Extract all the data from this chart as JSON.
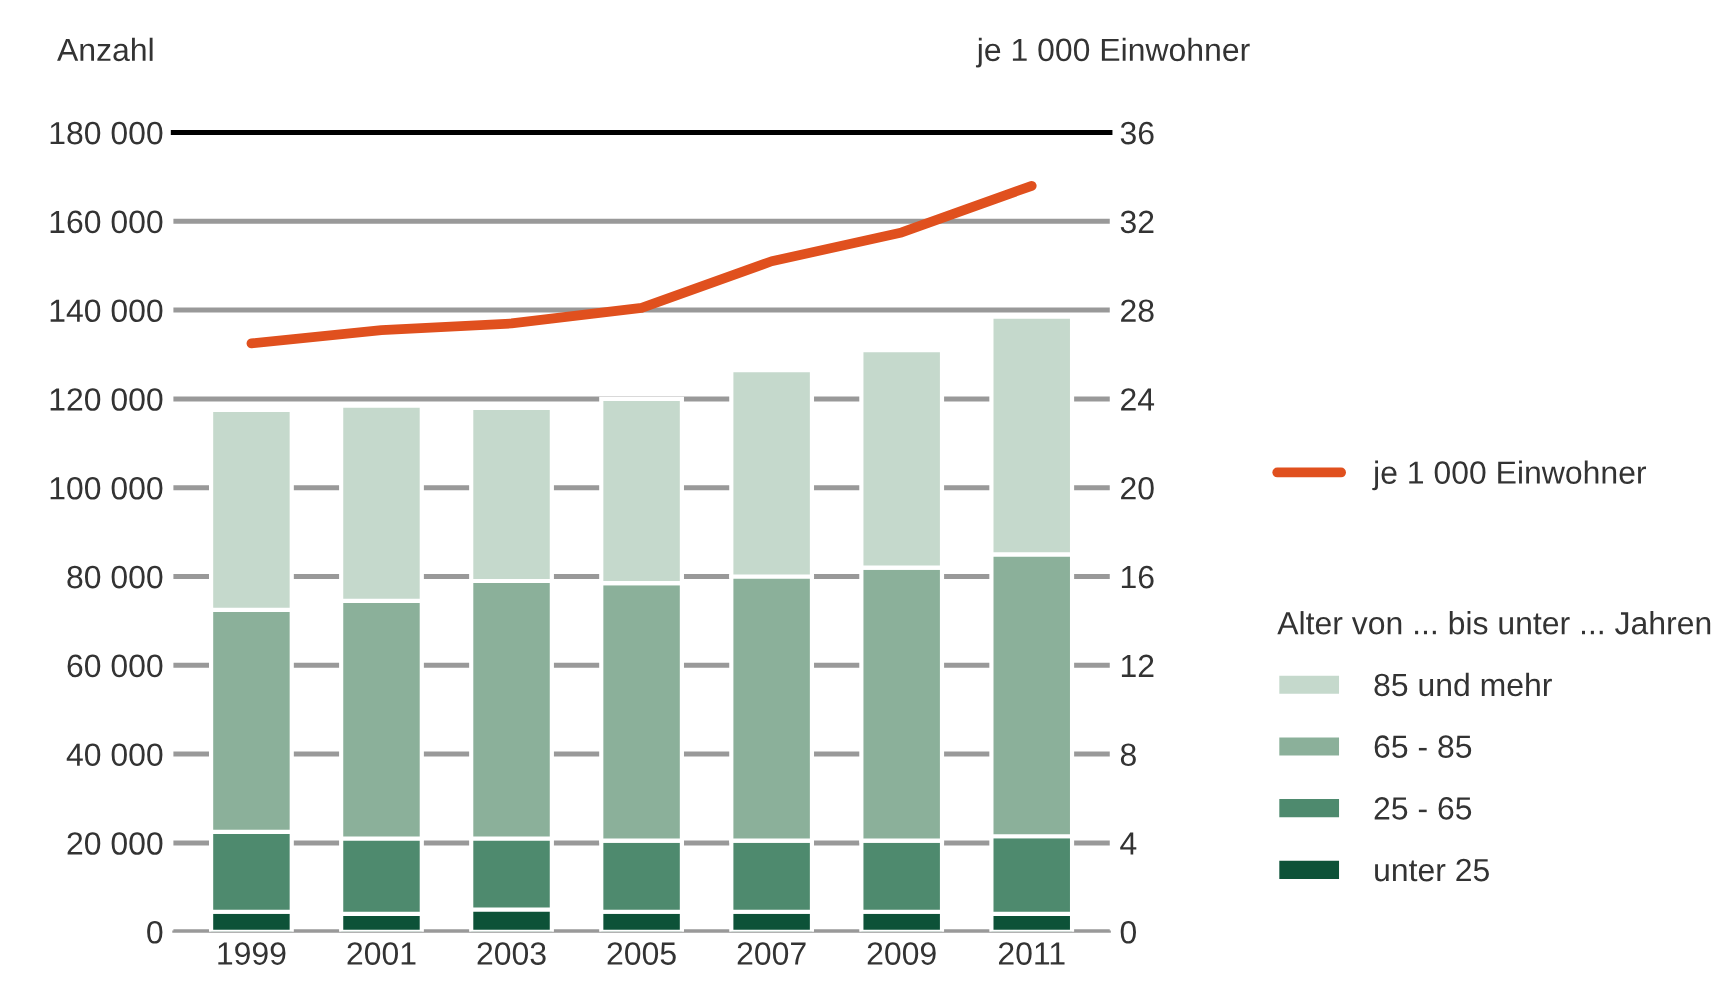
{
  "chart_data": {
    "type": "bar",
    "stacked": true,
    "ylabel": "Anzahl",
    "y2label": "je 1 000 Einwohner",
    "legend_title": "Alter von ... bis unter ... Jahren",
    "legend": "right",
    "grid": "y",
    "categories": [
      "1999",
      "2001",
      "2003",
      "2005",
      "2007",
      "2009",
      "2011"
    ],
    "series": [
      {
        "name": "unter 25",
        "color": "#0d5238",
        "values": [
          4500,
          4000,
          5000,
          4500,
          4500,
          4500,
          4000
        ]
      },
      {
        "name": "25 - 65",
        "color": "#4e8a6e",
        "values": [
          18000,
          17000,
          16000,
          16000,
          16000,
          16000,
          17500
        ]
      },
      {
        "name": "65 - 85",
        "color": "#8bb09a",
        "values": [
          50000,
          53500,
          58000,
          58000,
          59500,
          61500,
          63500
        ]
      },
      {
        "name": "85 und mehr",
        "color": "#c5d9cc",
        "values": [
          45000,
          44000,
          39000,
          41500,
          46500,
          49000,
          53500
        ]
      },
      {
        "name": "je 1 000 Einwohner",
        "type": "line",
        "axis": "y2",
        "color": "#e0501e",
        "values": [
          26.5,
          27.1,
          27.4,
          28.1,
          30.2,
          31.5,
          33.6
        ]
      }
    ],
    "ylim": [
      0,
      180000
    ],
    "yticks": [
      0,
      {
        "value": 20000,
        "label": "20 000"
      },
      {
        "value": 40000,
        "label": "40 000"
      },
      {
        "value": 60000,
        "label": "60 000"
      },
      {
        "value": 80000,
        "label": "80 000"
      },
      {
        "value": 100000,
        "label": "100 000"
      },
      {
        "value": 120000,
        "label": "120 000"
      },
      {
        "value": 140000,
        "label": "140 000"
      },
      {
        "value": 160000,
        "label": "160 000"
      },
      {
        "value": 180000,
        "label": "180 000"
      }
    ],
    "y2lim": [
      0,
      36
    ],
    "y2ticks": [
      0,
      4,
      8,
      12,
      16,
      20,
      24,
      28,
      32,
      36
    ]
  }
}
